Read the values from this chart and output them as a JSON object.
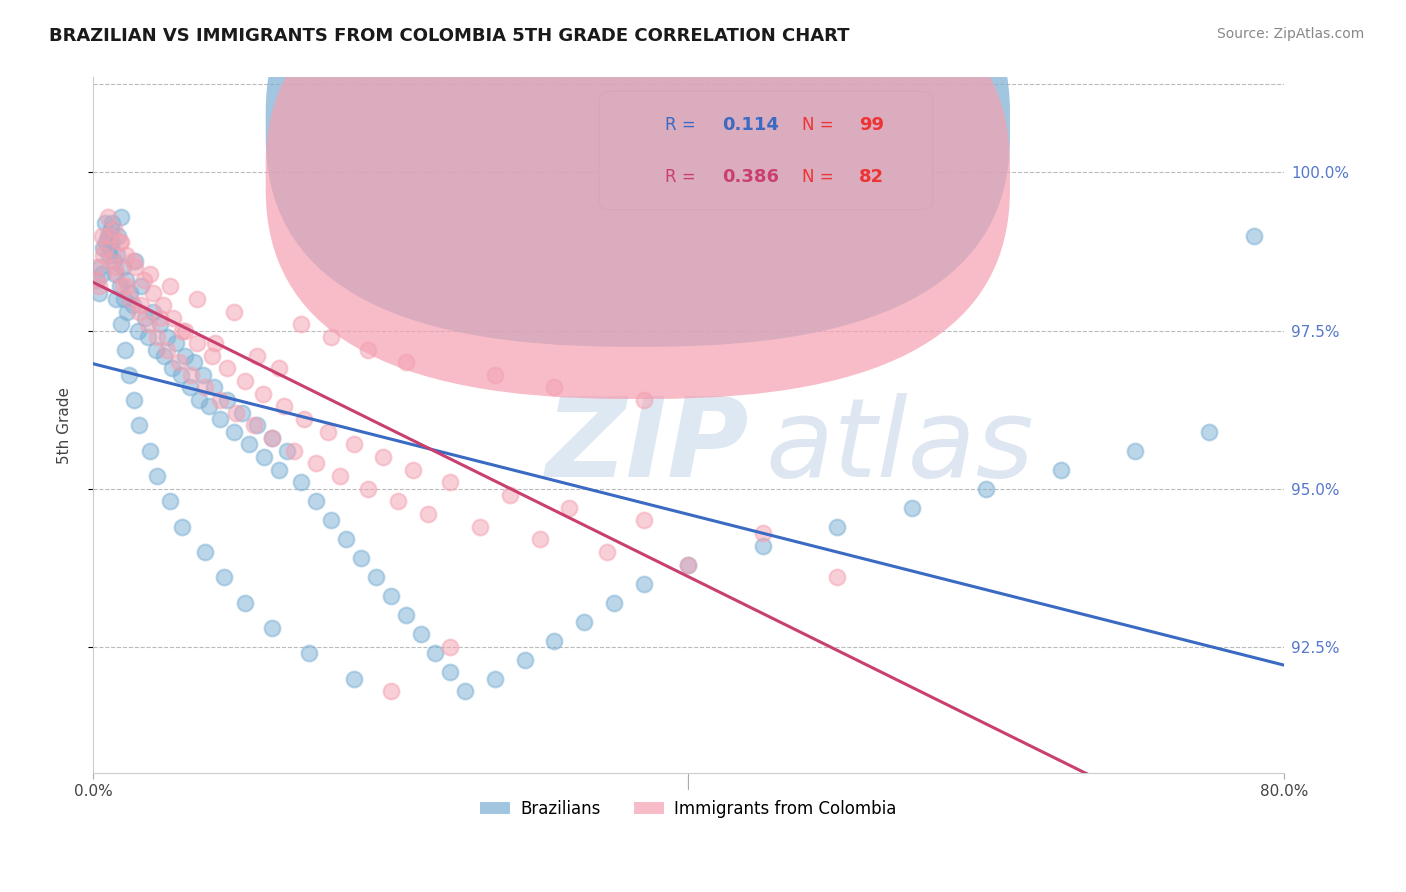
{
  "title": "BRAZILIAN VS IMMIGRANTS FROM COLOMBIA 5TH GRADE CORRELATION CHART",
  "source": "Source: ZipAtlas.com",
  "ylabel": "5th Grade",
  "xlim": [
    0.0,
    80.0
  ],
  "ylim": [
    90.5,
    101.5
  ],
  "yticks": [
    92.5,
    95.0,
    97.5,
    100.0
  ],
  "ytick_labels": [
    "92.5%",
    "95.0%",
    "97.5%",
    "100.0%"
  ],
  "blue_color": "#7BAFD4",
  "pink_color": "#F4A0B0",
  "blue_line_color": "#3B6AC3",
  "pink_line_color": "#C94070",
  "blue_R": 0.114,
  "blue_N": 99,
  "pink_R": 0.386,
  "pink_N": 82,
  "legend_label_blue": "Brazilians",
  "legend_label_pink": "Immigrants from Colombia",
  "blue_x": [
    0.3,
    0.5,
    0.7,
    0.8,
    1.0,
    1.1,
    1.2,
    1.3,
    1.4,
    1.5,
    1.6,
    1.7,
    1.8,
    1.9,
    2.0,
    2.1,
    2.2,
    2.3,
    2.5,
    2.7,
    2.8,
    3.0,
    3.2,
    3.5,
    3.7,
    4.0,
    4.2,
    4.5,
    4.8,
    5.0,
    5.3,
    5.6,
    5.9,
    6.2,
    6.5,
    6.8,
    7.1,
    7.4,
    7.8,
    8.1,
    8.5,
    9.0,
    9.5,
    10.0,
    10.5,
    11.0,
    11.5,
    12.0,
    12.5,
    13.0,
    14.0,
    15.0,
    16.0,
    17.0,
    18.0,
    19.0,
    20.0,
    21.0,
    22.0,
    23.0,
    24.0,
    25.0,
    27.0,
    29.0,
    31.0,
    33.0,
    35.0,
    37.0,
    40.0,
    45.0,
    50.0,
    55.0,
    60.0,
    65.0,
    70.0,
    75.0,
    0.4,
    0.6,
    0.9,
    1.05,
    1.15,
    1.25,
    1.55,
    1.85,
    2.15,
    2.45,
    2.75,
    3.1,
    3.8,
    4.3,
    5.2,
    6.0,
    7.5,
    8.8,
    10.2,
    12.0,
    14.5,
    17.5,
    78.0
  ],
  "blue_y": [
    98.3,
    98.5,
    98.8,
    99.2,
    99.0,
    98.7,
    99.1,
    98.9,
    98.6,
    98.4,
    98.7,
    99.0,
    98.2,
    99.3,
    98.5,
    98.0,
    98.3,
    97.8,
    98.1,
    97.9,
    98.6,
    97.5,
    98.2,
    97.7,
    97.4,
    97.8,
    97.2,
    97.6,
    97.1,
    97.4,
    96.9,
    97.3,
    96.8,
    97.1,
    96.6,
    97.0,
    96.4,
    96.8,
    96.3,
    96.6,
    96.1,
    96.4,
    95.9,
    96.2,
    95.7,
    96.0,
    95.5,
    95.8,
    95.3,
    95.6,
    95.1,
    94.8,
    94.5,
    94.2,
    93.9,
    93.6,
    93.3,
    93.0,
    92.7,
    92.4,
    92.1,
    91.8,
    92.0,
    92.3,
    92.6,
    92.9,
    93.2,
    93.5,
    93.8,
    94.1,
    94.4,
    94.7,
    95.0,
    95.3,
    95.6,
    95.9,
    98.1,
    98.4,
    98.9,
    99.0,
    98.8,
    99.2,
    98.0,
    97.6,
    97.2,
    96.8,
    96.4,
    96.0,
    95.6,
    95.2,
    94.8,
    94.4,
    94.0,
    93.6,
    93.2,
    92.8,
    92.4,
    92.0,
    99.0
  ],
  "pink_x": [
    0.2,
    0.4,
    0.6,
    0.8,
    1.0,
    1.2,
    1.4,
    1.6,
    1.8,
    2.0,
    2.2,
    2.5,
    2.8,
    3.1,
    3.4,
    3.7,
    4.0,
    4.3,
    4.7,
    5.0,
    5.4,
    5.8,
    6.2,
    6.6,
    7.0,
    7.5,
    8.0,
    8.5,
    9.0,
    9.6,
    10.2,
    10.8,
    11.4,
    12.0,
    12.8,
    13.5,
    14.2,
    15.0,
    15.8,
    16.6,
    17.5,
    18.5,
    19.5,
    20.5,
    21.5,
    22.5,
    24.0,
    26.0,
    28.0,
    30.0,
    32.0,
    34.5,
    37.0,
    40.0,
    45.0,
    50.0,
    0.3,
    0.7,
    1.1,
    1.5,
    1.9,
    2.3,
    2.7,
    3.2,
    3.8,
    4.5,
    5.2,
    6.0,
    7.0,
    8.2,
    9.5,
    11.0,
    12.5,
    14.0,
    16.0,
    18.5,
    21.0,
    24.0,
    27.0,
    31.0,
    37.0,
    20.0
  ],
  "pink_y": [
    98.5,
    98.2,
    99.0,
    98.8,
    99.3,
    98.6,
    99.1,
    98.4,
    98.9,
    98.2,
    98.7,
    98.0,
    98.5,
    97.8,
    98.3,
    97.6,
    98.1,
    97.4,
    97.9,
    97.2,
    97.7,
    97.0,
    97.5,
    96.8,
    97.3,
    96.6,
    97.1,
    96.4,
    96.9,
    96.2,
    96.7,
    96.0,
    96.5,
    95.8,
    96.3,
    95.6,
    96.1,
    95.4,
    95.9,
    95.2,
    95.7,
    95.0,
    95.5,
    94.8,
    95.3,
    94.6,
    95.1,
    94.4,
    94.9,
    94.2,
    94.7,
    94.0,
    94.5,
    93.8,
    94.3,
    93.6,
    98.3,
    98.7,
    99.0,
    98.5,
    98.9,
    98.2,
    98.6,
    97.9,
    98.4,
    97.7,
    98.2,
    97.5,
    98.0,
    97.3,
    97.8,
    97.1,
    96.9,
    97.6,
    97.4,
    97.2,
    97.0,
    92.5,
    96.8,
    96.6,
    96.4,
    91.8
  ]
}
